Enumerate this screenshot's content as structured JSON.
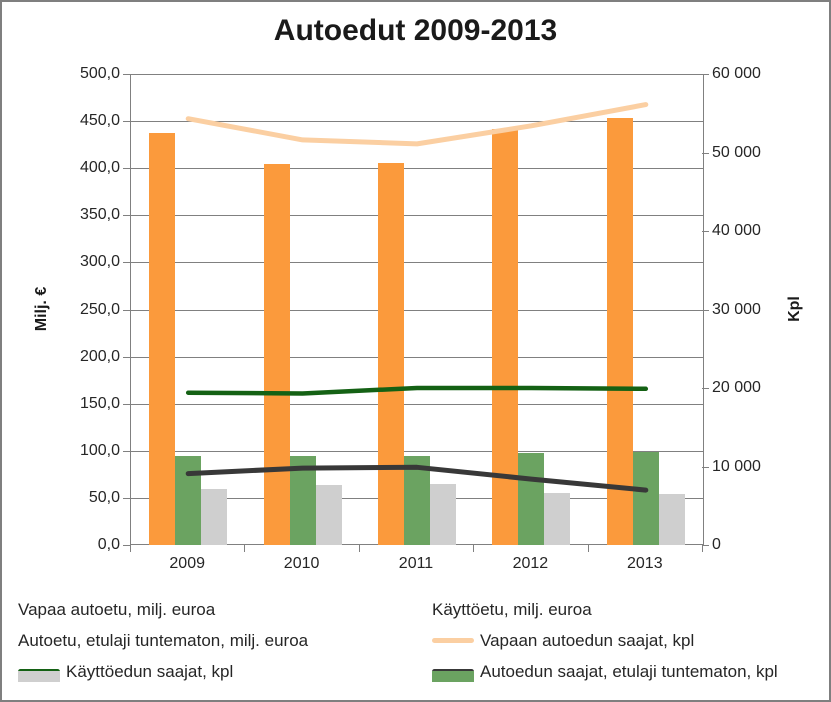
{
  "title": "Autoedut 2009-2013",
  "chart_data": {
    "type": "combo-bar-line",
    "title": "Autoedut 2009-2013",
    "categories": [
      "2009",
      "2010",
      "2011",
      "2012",
      "2013"
    ],
    "left_axis": {
      "label": "Milj. €",
      "min": 0,
      "max": 500,
      "step": 50,
      "tick_labels": [
        "500,0",
        "450,0",
        "400,0",
        "350,0",
        "300,0",
        "250,0",
        "200,0",
        "150,0",
        "100,0",
        "50,0",
        "0,0"
      ]
    },
    "right_axis": {
      "label": "Kpl",
      "min": 0,
      "max": 60000,
      "step": 10000,
      "tick_labels": [
        "60 000",
        "50 000",
        "40 000",
        "30 000",
        "20 000",
        "10 000",
        "0"
      ]
    },
    "grid": "horizontal",
    "legend_position": "bottom",
    "bar_series": [
      {
        "name": "Vapaa autoetu, milj. euroa",
        "axis": "left",
        "color": "#FB9A3C",
        "values": [
          437,
          405,
          406,
          442,
          453
        ]
      },
      {
        "name": "Käyttöetu, milj. euroa",
        "axis": "left",
        "color": "#6BA361",
        "values": [
          95,
          94,
          95,
          98,
          99
        ]
      },
      {
        "name": "Autoetu, etulaji tuntematon, milj. euroa",
        "axis": "left",
        "color": "#CFCFCF",
        "values": [
          59,
          64,
          65,
          55,
          54
        ]
      }
    ],
    "line_series": [
      {
        "name": "Vapaan autoedun saajat, kpl",
        "axis": "right",
        "color": "#FBCFA2",
        "width": 5,
        "values": [
          54300,
          51600,
          51100,
          53400,
          56100
        ]
      },
      {
        "name": "Käyttöedun saajat, kpl",
        "axis": "right",
        "color": "#146114",
        "width": 4.5,
        "values": [
          19400,
          19300,
          20000,
          20000,
          19900
        ]
      },
      {
        "name": "Autoedun saajat, etulaji tuntematon, kpl",
        "axis": "right",
        "color": "#383838",
        "width": 5,
        "values": [
          9100,
          9800,
          9900,
          8400,
          7000
        ]
      }
    ],
    "legend": {
      "items": [
        {
          "label": "Vapaa autoetu, milj. euroa",
          "marker": "bar",
          "color": "#FB9A3C"
        },
        {
          "label": "Käyttöetu, milj. euroa",
          "marker": "bar",
          "color": "#6BA361"
        },
        {
          "label": "Autoetu, etulaji tuntematon, milj. euroa",
          "marker": "bar",
          "color": "#CFCFCF"
        },
        {
          "label": "Vapaan autoedun saajat, kpl",
          "marker": "line",
          "color": "#FBCFA2"
        },
        {
          "label": "Käyttöedun saajat, kpl",
          "marker": "line",
          "color": "#146114"
        },
        {
          "label": "Autoedun saajat, etulaji tuntematon, kpl",
          "marker": "line",
          "color": "#383838"
        }
      ]
    }
  }
}
